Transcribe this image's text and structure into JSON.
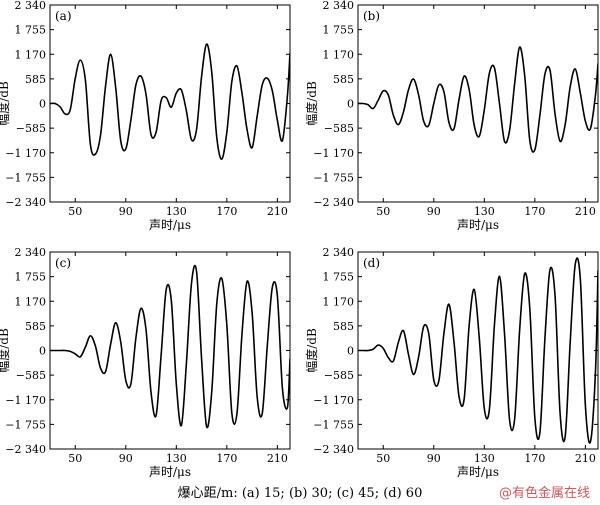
{
  "caption": "爆心距/m: (a) 15; (b) 30; (c) 45; (d) 60",
  "watermark": "@有色金属在线",
  "chart_data": [
    {
      "type": "line",
      "panel_label": "(a)",
      "xlabel": "声时/μs",
      "ylabel": "幅度/dB",
      "xlim": [
        30,
        220
      ],
      "ylim": [
        -2340,
        2340
      ],
      "xticks": [
        50,
        90,
        130,
        170,
        210
      ],
      "yticks": [
        "−2 340",
        "−1 755",
        "−1 170",
        "−585",
        "0",
        "585",
        "1 170",
        "1 755",
        "2 340"
      ],
      "x": [
        30,
        34,
        38,
        42,
        46,
        50,
        54,
        58,
        62,
        66,
        70,
        74,
        78,
        82,
        86,
        90,
        94,
        98,
        102,
        106,
        110,
        114,
        118,
        122,
        126,
        130,
        134,
        138,
        142,
        146,
        150,
        154,
        158,
        162,
        166,
        170,
        174,
        178,
        182,
        186,
        190,
        194,
        198,
        202,
        206,
        210,
        214,
        218,
        220
      ],
      "y": [
        0,
        0,
        -80,
        -250,
        -150,
        600,
        1030,
        560,
        -980,
        -1200,
        -750,
        420,
        1170,
        380,
        -890,
        -1080,
        -400,
        440,
        650,
        220,
        -740,
        -680,
        70,
        140,
        -90,
        250,
        320,
        -180,
        -860,
        -620,
        640,
        1410,
        760,
        -800,
        -1320,
        -680,
        530,
        890,
        240,
        -620,
        -1050,
        -300,
        440,
        600,
        300,
        -400,
        -880,
        200,
        1200
      ]
    },
    {
      "type": "line",
      "panel_label": "(b)",
      "xlabel": "声时/μs",
      "ylabel": "幅度/dB",
      "xlim": [
        30,
        220
      ],
      "ylim": [
        -2340,
        2340
      ],
      "xticks": [
        50,
        90,
        130,
        170,
        210
      ],
      "yticks": [
        "−2 340",
        "−1 755",
        "−1 170",
        "−585",
        "0",
        "585",
        "1 170",
        "1 755",
        "2 340"
      ],
      "x": [
        30,
        34,
        38,
        42,
        46,
        50,
        54,
        58,
        62,
        66,
        70,
        74,
        78,
        82,
        86,
        90,
        94,
        98,
        102,
        106,
        110,
        114,
        118,
        122,
        126,
        130,
        134,
        138,
        142,
        146,
        150,
        154,
        158,
        162,
        166,
        170,
        174,
        178,
        182,
        186,
        190,
        194,
        198,
        202,
        206,
        210,
        214,
        218,
        220
      ],
      "y": [
        0,
        0,
        -30,
        -120,
        80,
        300,
        200,
        -280,
        -500,
        -200,
        330,
        580,
        200,
        -420,
        -520,
        0,
        440,
        280,
        -450,
        -600,
        100,
        650,
        330,
        -520,
        -780,
        -150,
        720,
        850,
        0,
        -900,
        -640,
        470,
        1340,
        650,
        -880,
        -1100,
        -280,
        700,
        790,
        -250,
        -900,
        -500,
        400,
        820,
        250,
        -420,
        -600,
        200,
        950
      ]
    },
    {
      "type": "line",
      "panel_label": "(c)",
      "xlabel": "声时/μs",
      "ylabel": "幅度/dB",
      "xlim": [
        30,
        220
      ],
      "ylim": [
        -2340,
        2340
      ],
      "xticks": [
        50,
        90,
        130,
        170,
        210
      ],
      "yticks": [
        "−2 340",
        "−1 755",
        "−1 170",
        "−585",
        "0",
        "585",
        "1 170",
        "1 755",
        "2 340"
      ],
      "x": [
        30,
        34,
        38,
        42,
        46,
        50,
        54,
        58,
        62,
        66,
        70,
        74,
        78,
        82,
        86,
        90,
        94,
        98,
        102,
        106,
        110,
        114,
        118,
        122,
        126,
        130,
        134,
        138,
        142,
        146,
        150,
        154,
        158,
        162,
        166,
        170,
        174,
        178,
        182,
        186,
        190,
        194,
        198,
        202,
        206,
        210,
        214,
        218,
        220
      ],
      "y": [
        0,
        0,
        0,
        0,
        -20,
        -80,
        -150,
        80,
        350,
        100,
        -420,
        -500,
        150,
        660,
        200,
        -710,
        -800,
        300,
        1000,
        500,
        -1000,
        -1540,
        -100,
        1450,
        1200,
        -800,
        -1780,
        -300,
        1590,
        1880,
        -200,
        -1810,
        -1000,
        1100,
        1710,
        600,
        -1500,
        -1500,
        400,
        1640,
        900,
        -1100,
        -1500,
        100,
        1500,
        1300,
        -900,
        -1350,
        -200
      ]
    },
    {
      "type": "line",
      "panel_label": "(d)",
      "xlabel": "声时/μs",
      "ylabel": "幅度/dB",
      "xlim": [
        30,
        220
      ],
      "ylim": [
        -2340,
        2340
      ],
      "xticks": [
        50,
        90,
        130,
        170,
        210
      ],
      "yticks": [
        "−2 340",
        "−1 755",
        "−1 170",
        "−585",
        "0",
        "585",
        "1 170",
        "1 755",
        "2 340"
      ],
      "x": [
        30,
        34,
        38,
        42,
        46,
        50,
        54,
        58,
        62,
        66,
        70,
        74,
        78,
        82,
        86,
        90,
        94,
        98,
        102,
        106,
        110,
        114,
        118,
        122,
        126,
        130,
        134,
        138,
        142,
        146,
        150,
        154,
        158,
        162,
        166,
        170,
        174,
        178,
        182,
        186,
        190,
        194,
        198,
        202,
        206,
        210,
        214,
        218,
        220
      ],
      "y": [
        0,
        0,
        0,
        30,
        130,
        50,
        -170,
        -250,
        200,
        470,
        -100,
        -570,
        -150,
        570,
        400,
        -700,
        -720,
        400,
        1100,
        200,
        -1100,
        -1160,
        600,
        1450,
        300,
        -1380,
        -1400,
        600,
        1760,
        400,
        -1650,
        -1630,
        500,
        1830,
        1000,
        -1600,
        -1950,
        300,
        1920,
        1300,
        -1500,
        -2050,
        200,
        2050,
        1700,
        -1300,
        -2170,
        -500,
        1900
      ]
    }
  ]
}
